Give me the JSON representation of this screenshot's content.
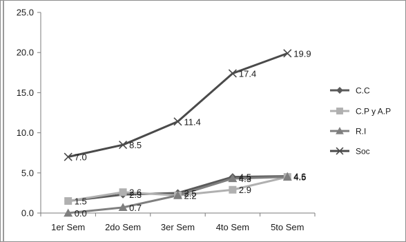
{
  "chart_data": {
    "type": "line",
    "categories": [
      "1er Sem",
      "2do Sem",
      "3er Sem",
      "4to Sem",
      "5to Sem"
    ],
    "ylim": [
      0,
      25
    ],
    "yticks": [
      "0.0",
      "5.0",
      "10.0",
      "15.0",
      "20.0",
      "25.0"
    ],
    "grid": false,
    "legend": "right",
    "series": [
      {
        "name": "C.C",
        "values": [
          1.5,
          2.3,
          2.5,
          4.5,
          4.6
        ],
        "labels": [
          "",
          "2.3",
          "2.5",
          "4.5",
          "4.6"
        ],
        "color": "#5a5a5a",
        "marker": "diamond"
      },
      {
        "name": "C.P y A.P",
        "values": [
          1.5,
          2.6,
          2.2,
          2.9,
          4.5
        ],
        "labels": [
          "1.5",
          "2.6",
          "2.2",
          "2.9",
          "4.5"
        ],
        "color": "#b0b0b0",
        "marker": "square"
      },
      {
        "name": "R.I",
        "values": [
          0.0,
          0.7,
          2.2,
          4.3,
          4.5
        ],
        "labels": [
          "0.0",
          "0.7",
          "",
          "4.3",
          "4.5"
        ],
        "color": "#7f7f7f",
        "marker": "triangle"
      },
      {
        "name": "Soc",
        "values": [
          7.0,
          8.5,
          11.4,
          17.4,
          19.9
        ],
        "labels": [
          "7.0",
          "8.5",
          "11.4",
          "17.4",
          "19.9"
        ],
        "color": "#4a4a4a",
        "marker": "x"
      }
    ]
  }
}
